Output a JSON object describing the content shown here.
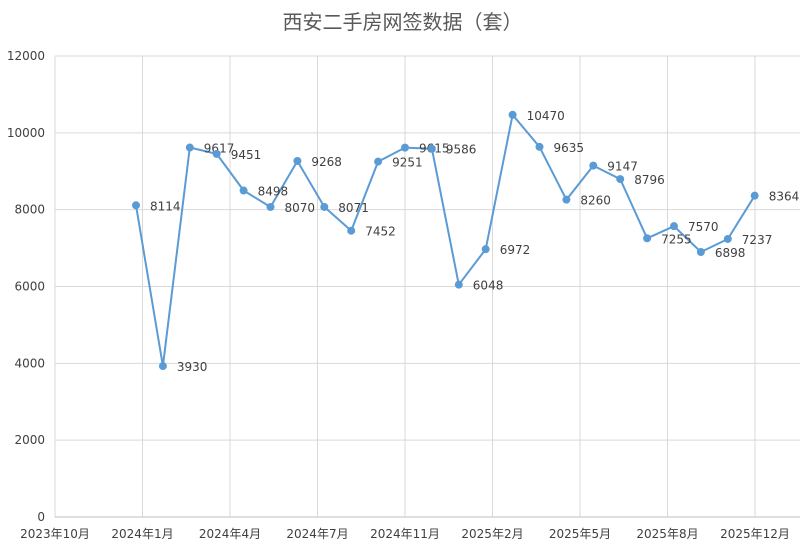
{
  "chart_data": {
    "type": "line",
    "title": "西安二手房网签数据（套）",
    "xlabel": "",
    "ylabel": "",
    "ylim": [
      0,
      12000
    ],
    "yticks": [
      0,
      2000,
      4000,
      6000,
      8000,
      10000,
      12000
    ],
    "x_ticks": [
      "2023年10月",
      "2024年1月",
      "2024年4月",
      "2024年7月",
      "2024年11月",
      "2025年2月",
      "2025年5月",
      "2025年8月",
      "2025年12月"
    ],
    "grid": true,
    "legend": "none",
    "line_color": "#5b9bd5",
    "series": [
      {
        "x": [
          "2023年12月",
          "2024年1月",
          "2024年2月",
          "2024年3月",
          "2024年4月",
          "2024年5月",
          "2024年6月",
          "2024年7月",
          "2024年8月",
          "2024年9月",
          "2024年10月",
          "2024年11月",
          "2024年12月",
          "2025年1月",
          "2025年2月",
          "2025年3月",
          "2025年4月",
          "2025年5月",
          "2025年6月",
          "2025年7月",
          "2025年8月",
          "2025年9月",
          "2025年10月",
          "2025年11月"
        ],
        "values": [
          8114,
          3930,
          9617,
          9451,
          8498,
          8070,
          9268,
          8071,
          7452,
          9251,
          9615,
          9586,
          6048,
          6972,
          10470,
          9635,
          8260,
          9147,
          8796,
          7255,
          7570,
          6898,
          7237,
          8364
        ]
      }
    ]
  }
}
